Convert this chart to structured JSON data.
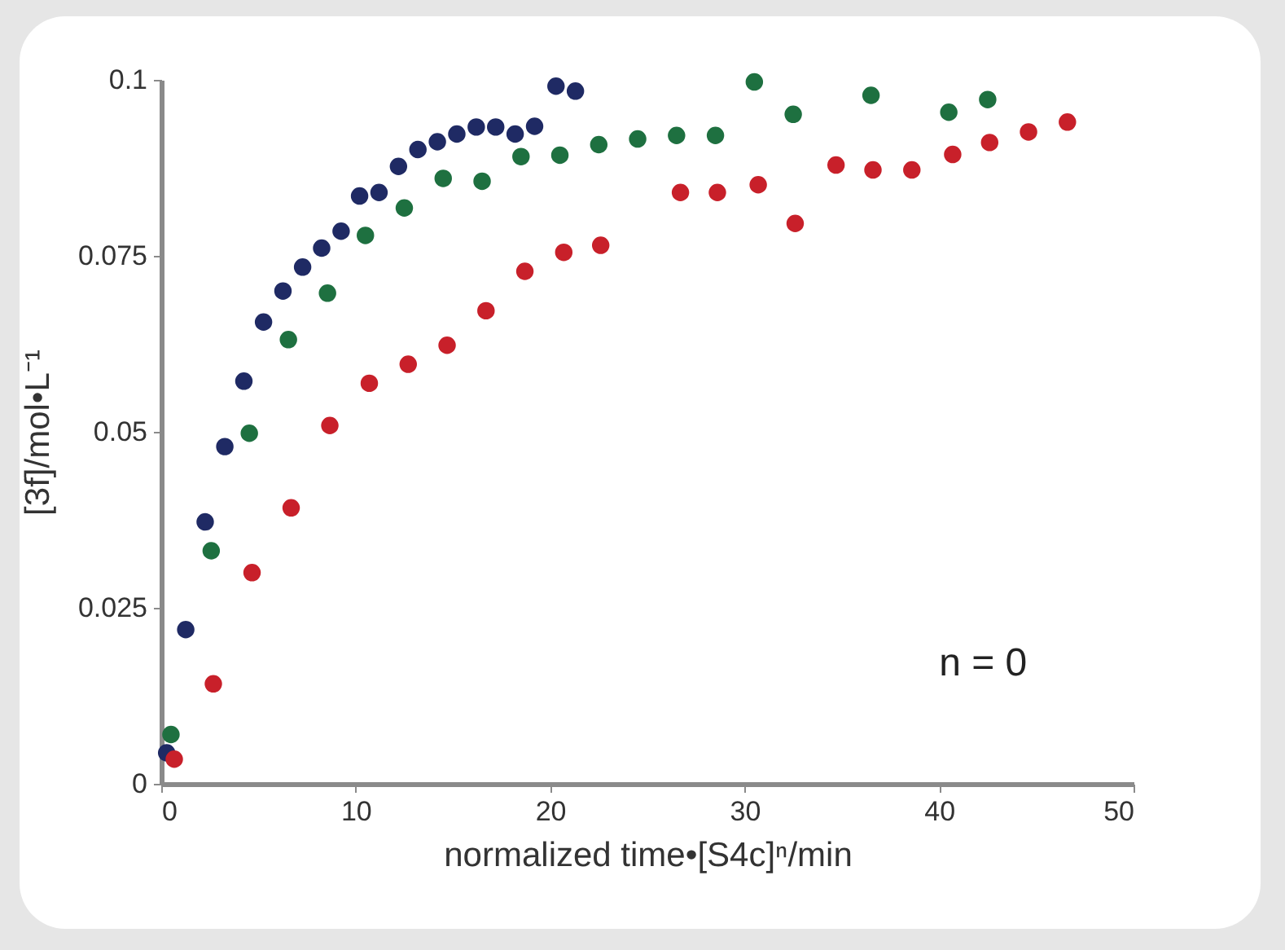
{
  "chart_data": {
    "type": "scatter",
    "xlabel": "normalized time•[S4c]ⁿ/min",
    "ylabel": "[3f]/mol•L⁻¹",
    "xlim": [
      0,
      50
    ],
    "xticks": [
      0,
      10,
      20,
      30,
      40,
      50
    ],
    "ylim": [
      0,
      0.1
    ],
    "yticks": [
      0,
      0.025,
      0.05,
      0.075,
      0.1
    ],
    "grid": false,
    "marker": "circle",
    "annotations": [
      "n = 0"
    ],
    "series": [
      {
        "color": "#1f2a64",
        "x": [
          0.28,
          1.26,
          2.26,
          3.27,
          4.25,
          5.26,
          6.26,
          7.27,
          8.25,
          9.25,
          10.2,
          11.2,
          12.2,
          13.2,
          14.2,
          15.2,
          16.2,
          17.2,
          18.2,
          19.2,
          20.3,
          21.3
        ],
        "values": [
          0.0044,
          0.0219,
          0.0372,
          0.0479,
          0.0572,
          0.0656,
          0.07,
          0.0734,
          0.0761,
          0.0785,
          0.0835,
          0.084,
          0.0877,
          0.0901,
          0.0912,
          0.0923,
          0.0933,
          0.0933,
          0.0923,
          0.0934,
          0.0991,
          0.0984
        ]
      },
      {
        "color": "#1e7040",
        "x": [
          0.5,
          2.57,
          4.53,
          6.54,
          8.55,
          10.5,
          12.5,
          14.5,
          16.5,
          18.5,
          20.5,
          22.5,
          24.5,
          26.5,
          28.5,
          30.5,
          32.5,
          36.5,
          40.5,
          42.5
        ],
        "values": [
          0.007,
          0.0331,
          0.0498,
          0.0631,
          0.0697,
          0.0779,
          0.0818,
          0.086,
          0.0856,
          0.0891,
          0.0893,
          0.0908,
          0.0916,
          0.0921,
          0.0921,
          0.0997,
          0.0951,
          0.0978,
          0.0954,
          0.0972
        ]
      },
      {
        "color": "#c8202a",
        "x": [
          0.67,
          2.68,
          4.67,
          6.68,
          8.67,
          10.7,
          12.7,
          14.7,
          16.7,
          18.7,
          20.7,
          22.6,
          26.7,
          28.6,
          30.7,
          32.6,
          34.7,
          36.6,
          38.6,
          40.7,
          42.6,
          44.6,
          46.6
        ],
        "values": [
          0.0035,
          0.0142,
          0.03,
          0.0392,
          0.0509,
          0.0569,
          0.0596,
          0.0623,
          0.0672,
          0.0728,
          0.0755,
          0.0765,
          0.084,
          0.084,
          0.0851,
          0.0796,
          0.0879,
          0.0872,
          0.0872,
          0.0894,
          0.0911,
          0.0926,
          0.094
        ]
      }
    ]
  }
}
